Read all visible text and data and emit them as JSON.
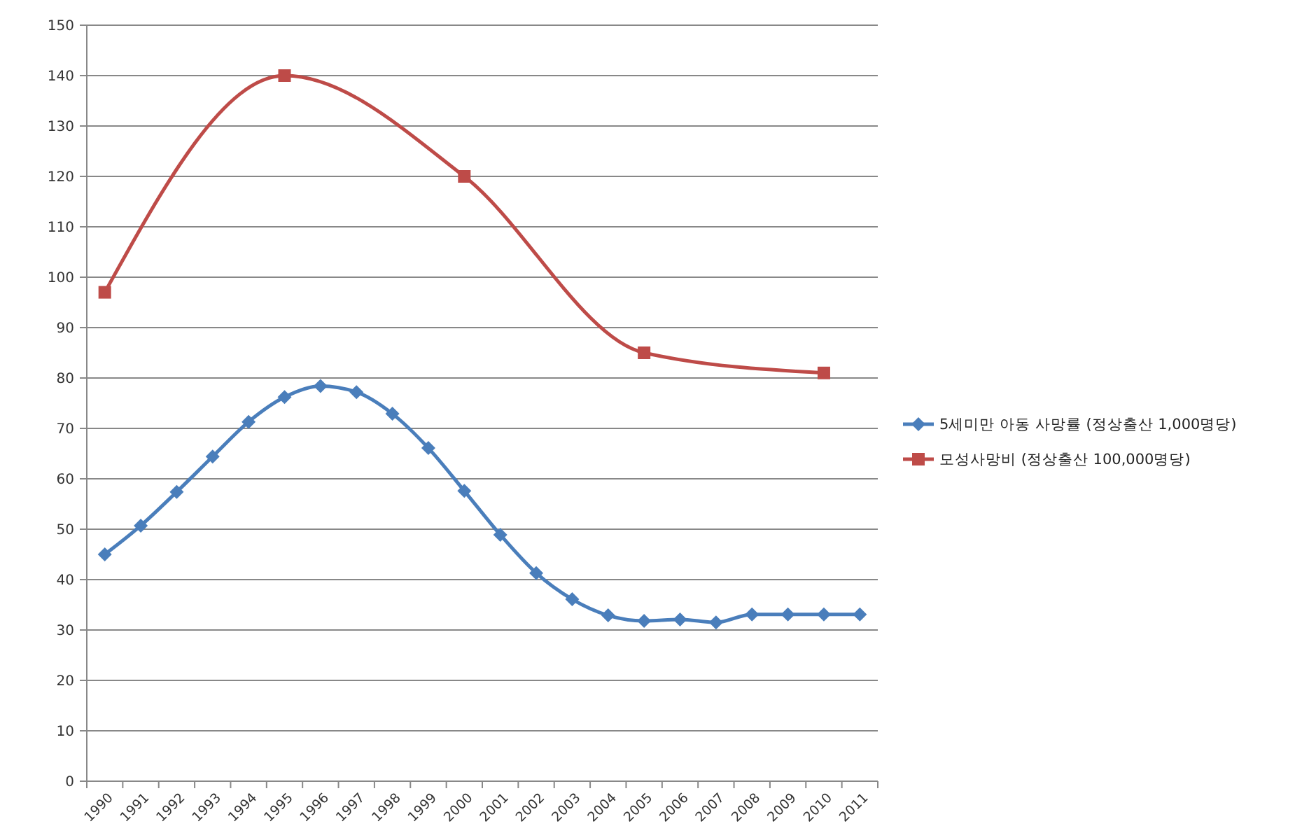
{
  "chart_data": {
    "type": "line",
    "categories": [
      "1990",
      "1991",
      "1992",
      "1993",
      "1994",
      "1995",
      "1996",
      "1997",
      "1998",
      "1999",
      "2000",
      "2001",
      "2002",
      "2003",
      "2004",
      "2005",
      "2006",
      "2007",
      "2008",
      "2009",
      "2010",
      "2011"
    ],
    "series": [
      {
        "name": "5세미만 아동 사망률 (정상출산 1,000명당)",
        "color": "#4a7ebb",
        "marker": "diamond",
        "values": [
          45,
          50.7,
          57.4,
          64.4,
          71.3,
          76.2,
          78.4,
          77.2,
          72.9,
          66.1,
          57.6,
          48.9,
          41.3,
          36.1,
          32.9,
          31.8,
          32.1,
          31.5,
          33.1,
          33.1,
          33.1,
          33.1
        ]
      },
      {
        "name": "모성사망비 (정상출산 100,000명당)",
        "color": "#be4b48",
        "marker": "square",
        "values": [
          97,
          null,
          null,
          null,
          null,
          140,
          null,
          null,
          null,
          null,
          120,
          null,
          null,
          null,
          null,
          85,
          null,
          null,
          null,
          null,
          81,
          null
        ]
      }
    ],
    "ylim": [
      0,
      150
    ],
    "yticks": [
      0,
      10,
      20,
      30,
      40,
      50,
      60,
      70,
      80,
      90,
      100,
      110,
      120,
      130,
      140,
      150
    ],
    "grid": "y",
    "legend": "right"
  }
}
